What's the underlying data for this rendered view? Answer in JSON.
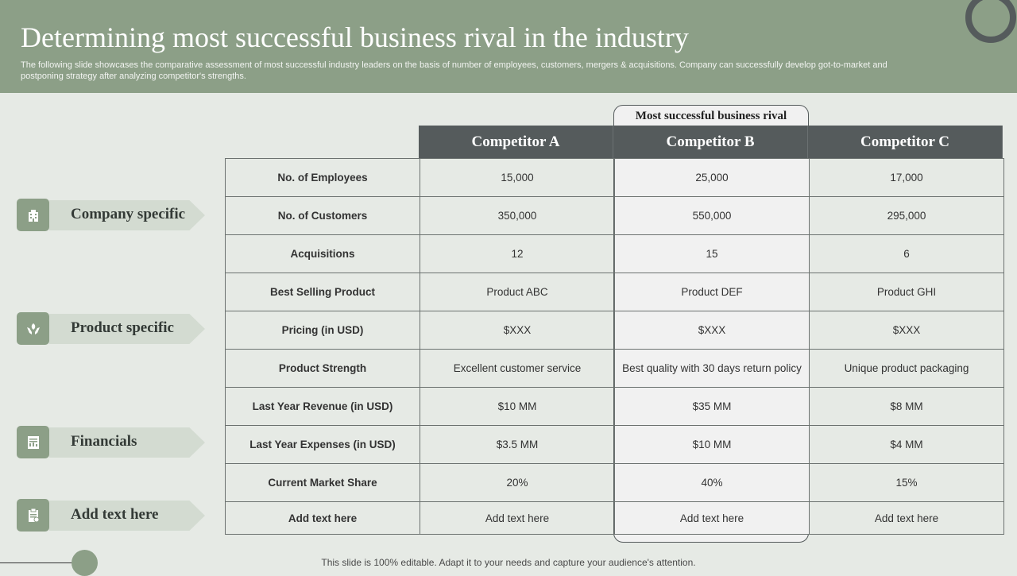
{
  "header": {
    "title": "Determining most successful business rival in the industry",
    "subtitle": "The following slide showcases the comparative assessment of most successful industry leaders on the basis of number of employees, customers, mergers & acquisitions. Company can successfully develop got-to-market and postponing strategy after analyzing competitor's strengths."
  },
  "sidebar": {
    "items": [
      {
        "label": "Company specific",
        "icon": "building-icon"
      },
      {
        "label": "Product specific",
        "icon": "hands-plant-icon"
      },
      {
        "label": "Financials",
        "icon": "report-icon"
      },
      {
        "label": "Add text here",
        "icon": "clipboard-icon"
      }
    ]
  },
  "highlight_label": "Most successful business rival",
  "table": {
    "columns": [
      "Competitor A",
      "Competitor B",
      "Competitor C"
    ],
    "rows": [
      {
        "label": "No. of Employees",
        "values": [
          "15,000",
          "25,000",
          "17,000"
        ]
      },
      {
        "label": "No. of Customers",
        "values": [
          "350,000",
          "550,000",
          "295,000"
        ]
      },
      {
        "label": "Acquisitions",
        "values": [
          "12",
          "15",
          "6"
        ]
      },
      {
        "label": "Best Selling Product",
        "values": [
          "Product ABC",
          "Product DEF",
          "Product GHI"
        ]
      },
      {
        "label": "Pricing (in USD)",
        "values": [
          "$XXX",
          "$XXX",
          "$XXX"
        ]
      },
      {
        "label": "Product Strength",
        "values": [
          "Excellent customer service",
          "Best quality with 30 days return policy",
          "Unique product packaging"
        ]
      },
      {
        "label": "Last Year Revenue (in USD)",
        "values": [
          "$10 MM",
          "$35 MM",
          "$8 MM"
        ]
      },
      {
        "label": "Last Year Expenses (in USD)",
        "values": [
          "$3.5 MM",
          "$10 MM",
          "$4 MM"
        ]
      },
      {
        "label": "Current Market Share",
        "values": [
          "20%",
          "40%",
          "15%"
        ]
      },
      {
        "label": "Add text here",
        "values": [
          "Add text here",
          "Add text here",
          "Add text here"
        ]
      }
    ]
  },
  "footer": "This slide is 100% editable. Adapt it to your needs and capture your audience's attention.",
  "colors": {
    "header_bg": "#8c9f87",
    "dark": "#555b5c",
    "background": "#e6eae5",
    "arrow": "#d3dbd1"
  }
}
